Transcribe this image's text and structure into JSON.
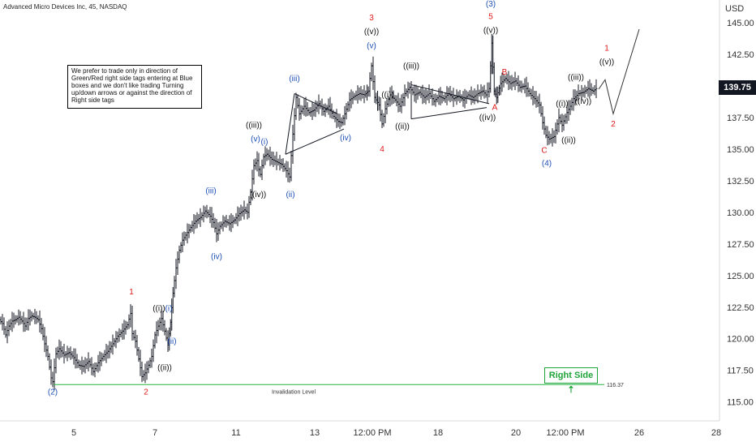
{
  "header": {
    "title": "Advanced Micro Devices Inc, 45, NASDAQ",
    "currency": "USD",
    "last_price": "139.75"
  },
  "note_text": "We prefer to trade only in direction of Green/Red right side tags entering at Blue boxes and we don't like trading Turning up/down arrows or against the direction of Right side tags",
  "right_side_tag": "Right Side ⇡",
  "colors": {
    "candle": "#131722",
    "red_label": "#e01818",
    "blue_label": "#1e4fb4",
    "black_label": "#111111",
    "invalidation_line": "#27b33f",
    "axis_text": "#333333"
  },
  "chart_data": {
    "type": "line",
    "title": "Advanced Micro Devices Inc, 45, NASDAQ",
    "xlabel": "",
    "ylabel": "USD",
    "ylim": [
      113.5,
      146.5
    ],
    "grid": false,
    "y_ticks": [
      "145.00",
      "142.50",
      "140.00",
      "137.50",
      "135.00",
      "132.50",
      "130.00",
      "127.50",
      "125.00",
      "122.50",
      "120.00",
      "117.50",
      "115.00"
    ],
    "x_ticks": [
      "5",
      "7",
      "11",
      "13",
      "12:00 PM",
      "18",
      "20",
      "12:00 PM",
      "26",
      "28"
    ],
    "price_path": [
      {
        "t": 0,
        "p": 121.5
      },
      {
        "t": 4,
        "p": 121.2
      },
      {
        "t": 8,
        "p": 120.3
      },
      {
        "t": 12,
        "p": 121.0
      },
      {
        "t": 16,
        "p": 121.4
      },
      {
        "t": 20,
        "p": 121.5
      },
      {
        "t": 24,
        "p": 121.7
      },
      {
        "t": 28,
        "p": 121.4
      },
      {
        "t": 32,
        "p": 121.0
      },
      {
        "t": 36,
        "p": 121.6
      },
      {
        "t": 40,
        "p": 121.8
      },
      {
        "t": 44,
        "p": 121.7
      },
      {
        "t": 48,
        "p": 121.5
      },
      {
        "t": 52,
        "p": 120.8
      },
      {
        "t": 56,
        "p": 119.6
      },
      {
        "t": 60,
        "p": 118.6
      },
      {
        "t": 64,
        "p": 116.9
      },
      {
        "t": 66,
        "p": 116.6
      },
      {
        "t": 70,
        "p": 118.8
      },
      {
        "t": 74,
        "p": 119.2
      },
      {
        "t": 80,
        "p": 118.7
      },
      {
        "t": 86,
        "p": 118.9
      },
      {
        "t": 92,
        "p": 118.5
      },
      {
        "t": 98,
        "p": 117.9
      },
      {
        "t": 104,
        "p": 117.8
      },
      {
        "t": 110,
        "p": 118.2
      },
      {
        "t": 116,
        "p": 117.4
      },
      {
        "t": 122,
        "p": 118.1
      },
      {
        "t": 128,
        "p": 118.6
      },
      {
        "t": 134,
        "p": 119.0
      },
      {
        "t": 140,
        "p": 119.6
      },
      {
        "t": 146,
        "p": 120.2
      },
      {
        "t": 152,
        "p": 120.6
      },
      {
        "t": 158,
        "p": 121.1
      },
      {
        "t": 162,
        "p": 122.0
      },
      {
        "t": 164,
        "p": 120.4
      },
      {
        "t": 168,
        "p": 119.8
      },
      {
        "t": 172,
        "p": 118.4
      },
      {
        "t": 176,
        "p": 117.0
      },
      {
        "t": 180,
        "p": 117.3
      },
      {
        "t": 184,
        "p": 117.9
      },
      {
        "t": 188,
        "p": 118.6
      },
      {
        "t": 192,
        "p": 120.3
      },
      {
        "t": 196,
        "p": 121.0
      },
      {
        "t": 200,
        "p": 121.6
      },
      {
        "t": 204,
        "p": 120.6
      },
      {
        "t": 208,
        "p": 119.5
      },
      {
        "t": 211,
        "p": 121.3
      },
      {
        "t": 214,
        "p": 123.6
      },
      {
        "t": 218,
        "p": 125.6
      },
      {
        "t": 222,
        "p": 127.0
      },
      {
        "t": 226,
        "p": 127.8
      },
      {
        "t": 230,
        "p": 128.2
      },
      {
        "t": 236,
        "p": 128.8
      },
      {
        "t": 242,
        "p": 129.3
      },
      {
        "t": 248,
        "p": 129.6
      },
      {
        "t": 254,
        "p": 130.1
      },
      {
        "t": 260,
        "p": 129.7
      },
      {
        "t": 264,
        "p": 129.2
      },
      {
        "t": 268,
        "p": 128.3
      },
      {
        "t": 272,
        "p": 128.9
      },
      {
        "t": 278,
        "p": 129.3
      },
      {
        "t": 284,
        "p": 129.1
      },
      {
        "t": 290,
        "p": 129.4
      },
      {
        "t": 296,
        "p": 129.9
      },
      {
        "t": 302,
        "p": 130.2
      },
      {
        "t": 306,
        "p": 130.0
      },
      {
        "t": 310,
        "p": 131.6
      },
      {
        "t": 314,
        "p": 133.7
      },
      {
        "t": 318,
        "p": 134.1
      },
      {
        "t": 320,
        "p": 133.4
      },
      {
        "t": 322,
        "p": 133.0
      },
      {
        "t": 326,
        "p": 134.4
      },
      {
        "t": 330,
        "p": 134.6
      },
      {
        "t": 336,
        "p": 134.2
      },
      {
        "t": 342,
        "p": 134.0
      },
      {
        "t": 348,
        "p": 133.8
      },
      {
        "t": 354,
        "p": 133.3
      },
      {
        "t": 358,
        "p": 132.8
      },
      {
        "t": 362,
        "p": 136.2
      },
      {
        "t": 366,
        "p": 139.1
      },
      {
        "t": 370,
        "p": 137.8
      },
      {
        "t": 376,
        "p": 138.4
      },
      {
        "t": 382,
        "p": 137.9
      },
      {
        "t": 388,
        "p": 138.1
      },
      {
        "t": 394,
        "p": 138.6
      },
      {
        "t": 400,
        "p": 138.0
      },
      {
        "t": 406,
        "p": 138.4
      },
      {
        "t": 412,
        "p": 137.6
      },
      {
        "t": 418,
        "p": 137.2
      },
      {
        "t": 422,
        "p": 137.1
      },
      {
        "t": 426,
        "p": 137.8
      },
      {
        "t": 432,
        "p": 138.9
      },
      {
        "t": 438,
        "p": 139.2
      },
      {
        "t": 444,
        "p": 139.4
      },
      {
        "t": 450,
        "p": 139.3
      },
      {
        "t": 455,
        "p": 139.6
      },
      {
        "t": 459,
        "p": 141.6
      },
      {
        "t": 463,
        "p": 139.1
      },
      {
        "t": 468,
        "p": 138.5
      },
      {
        "t": 472,
        "p": 137.0
      },
      {
        "t": 476,
        "p": 138.2
      },
      {
        "t": 482,
        "p": 139.3
      },
      {
        "t": 488,
        "p": 138.9
      },
      {
        "t": 494,
        "p": 138.4
      },
      {
        "t": 500,
        "p": 139.4
      },
      {
        "t": 506,
        "p": 139.9
      },
      {
        "t": 512,
        "p": 139.3
      },
      {
        "t": 518,
        "p": 139.5
      },
      {
        "t": 524,
        "p": 139.1
      },
      {
        "t": 530,
        "p": 139.4
      },
      {
        "t": 536,
        "p": 138.8
      },
      {
        "t": 542,
        "p": 139.2
      },
      {
        "t": 548,
        "p": 139.0
      },
      {
        "t": 554,
        "p": 139.4
      },
      {
        "t": 560,
        "p": 139.0
      },
      {
        "t": 566,
        "p": 139.2
      },
      {
        "t": 572,
        "p": 138.9
      },
      {
        "t": 578,
        "p": 139.3
      },
      {
        "t": 584,
        "p": 139.1
      },
      {
        "t": 590,
        "p": 139.4
      },
      {
        "t": 596,
        "p": 139.6
      },
      {
        "t": 600,
        "p": 139.3
      },
      {
        "t": 604,
        "p": 139.8
      },
      {
        "t": 607,
        "p": 143.4
      },
      {
        "t": 610,
        "p": 139.6
      },
      {
        "t": 613,
        "p": 139.1
      },
      {
        "t": 618,
        "p": 140.2
      },
      {
        "t": 624,
        "p": 140.6
      },
      {
        "t": 630,
        "p": 140.2
      },
      {
        "t": 636,
        "p": 140.4
      },
      {
        "t": 642,
        "p": 139.9
      },
      {
        "t": 648,
        "p": 140.0
      },
      {
        "t": 654,
        "p": 139.4
      },
      {
        "t": 660,
        "p": 139.0
      },
      {
        "t": 666,
        "p": 138.5
      },
      {
        "t": 670,
        "p": 137.1
      },
      {
        "t": 674,
        "p": 136.1
      },
      {
        "t": 678,
        "p": 135.8
      },
      {
        "t": 684,
        "p": 136.0
      },
      {
        "t": 690,
        "p": 137.5
      },
      {
        "t": 694,
        "p": 136.9
      },
      {
        "t": 700,
        "p": 137.9
      },
      {
        "t": 704,
        "p": 138.4
      },
      {
        "t": 708,
        "p": 139.0
      },
      {
        "t": 714,
        "p": 139.4
      },
      {
        "t": 720,
        "p": 139.5
      },
      {
        "t": 726,
        "p": 139.8
      },
      {
        "t": 732,
        "p": 139.6
      },
      {
        "t": 736,
        "p": 139.8
      }
    ],
    "projection_path": [
      {
        "t": 738,
        "p": 139.75
      },
      {
        "t": 746,
        "p": 140.5
      },
      {
        "t": 756,
        "p": 137.8
      },
      {
        "t": 788,
        "p": 144.5
      }
    ],
    "invalidation": {
      "value": 116.37,
      "label": "Invalidation Level",
      "value_label": "116.37",
      "t_start": 66,
      "t_end": 745
    },
    "triangles": [
      {
        "points": [
          {
            "t": 363,
            "p": 139.4
          },
          {
            "t": 416,
            "p": 137.8
          },
          {
            "t": 424,
            "p": 136.6
          },
          {
            "t": 352,
            "p": 134.6
          }
        ]
      },
      {
        "points": [
          {
            "t": 507,
            "p": 140.1
          },
          {
            "t": 603,
            "p": 138.6
          },
          {
            "t": 600,
            "p": 138.3
          },
          {
            "t": 507,
            "p": 137.4
          }
        ]
      }
    ],
    "wave_labels": [
      {
        "text": "(2)",
        "t": 65,
        "p": 115.6,
        "color": "blue"
      },
      {
        "text": "1",
        "t": 162,
        "p": 123.5,
        "color": "red"
      },
      {
        "text": "2",
        "t": 180,
        "p": 115.6,
        "color": "red"
      },
      {
        "text": "((i))",
        "t": 196,
        "p": 122.2,
        "color": "black"
      },
      {
        "text": "((ii))",
        "t": 203,
        "p": 117.5,
        "color": "black"
      },
      {
        "text": "(i)",
        "t": 208,
        "p": 122.2,
        "color": "blue"
      },
      {
        "text": "(ii)",
        "t": 212,
        "p": 119.6,
        "color": "blue"
      },
      {
        "text": "(iii)",
        "t": 260,
        "p": 131.5,
        "color": "blue"
      },
      {
        "text": "(iv)",
        "t": 267,
        "p": 126.3,
        "color": "blue"
      },
      {
        "text": "((iii))",
        "t": 313,
        "p": 136.7,
        "color": "black"
      },
      {
        "text": "(v)",
        "t": 315,
        "p": 135.6,
        "color": "blue"
      },
      {
        "text": "(i)",
        "t": 326,
        "p": 135.4,
        "color": "blue"
      },
      {
        "text": "((iv))",
        "t": 318,
        "p": 131.2,
        "color": "black"
      },
      {
        "text": "(ii)",
        "t": 358,
        "p": 131.2,
        "color": "blue"
      },
      {
        "text": "(iii)",
        "t": 363,
        "p": 140.4,
        "color": "blue"
      },
      {
        "text": "(iv)",
        "t": 426,
        "p": 135.7,
        "color": "blue"
      },
      {
        "text": "3",
        "t": 458,
        "p": 145.2,
        "color": "red"
      },
      {
        "text": "((v))",
        "t": 458,
        "p": 144.1,
        "color": "black"
      },
      {
        "text": "(v)",
        "t": 458,
        "p": 143.0,
        "color": "blue"
      },
      {
        "text": "((i))",
        "t": 478,
        "p": 139.1,
        "color": "black"
      },
      {
        "text": "4",
        "t": 471,
        "p": 134.8,
        "color": "red"
      },
      {
        "text": "((ii))",
        "t": 496,
        "p": 136.6,
        "color": "black"
      },
      {
        "text": "((iii))",
        "t": 507,
        "p": 141.4,
        "color": "black"
      },
      {
        "text": "(3)",
        "t": 605,
        "p": 146.3,
        "color": "blue"
      },
      {
        "text": "5",
        "t": 605,
        "p": 145.3,
        "color": "red"
      },
      {
        "text": "((v))",
        "t": 605,
        "p": 144.2,
        "color": "black"
      },
      {
        "text": "B",
        "t": 622,
        "p": 140.9,
        "color": "red"
      },
      {
        "text": "A",
        "t": 610,
        "p": 138.1,
        "color": "red"
      },
      {
        "text": "((iv))",
        "t": 601,
        "p": 137.3,
        "color": "black"
      },
      {
        "text": "C",
        "t": 671,
        "p": 134.7,
        "color": "red"
      },
      {
        "text": "(4)",
        "t": 674,
        "p": 133.7,
        "color": "blue"
      },
      {
        "text": "((ii))",
        "t": 701,
        "p": 135.5,
        "color": "black"
      },
      {
        "text": "((i))",
        "t": 693,
        "p": 138.4,
        "color": "black"
      },
      {
        "text": "((iii))",
        "t": 710,
        "p": 140.5,
        "color": "black"
      },
      {
        "text": "((iv))",
        "t": 719,
        "p": 138.6,
        "color": "black"
      },
      {
        "text": "1",
        "t": 748,
        "p": 142.8,
        "color": "red"
      },
      {
        "text": "((v))",
        "t": 748,
        "p": 141.7,
        "color": "black"
      },
      {
        "text": "2",
        "t": 756,
        "p": 136.8,
        "color": "red"
      }
    ]
  }
}
